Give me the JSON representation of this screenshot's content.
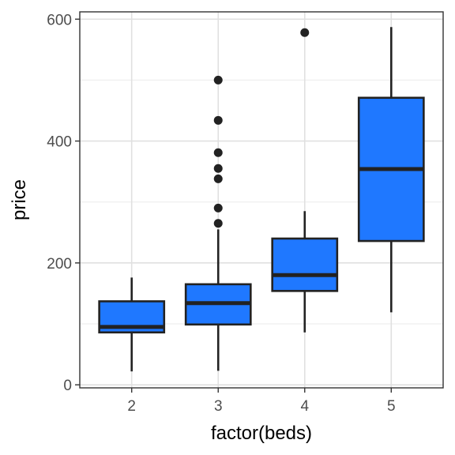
{
  "chart_data": {
    "type": "boxplot",
    "xlabel": "factor(beds)",
    "ylabel": "price",
    "categories": [
      "2",
      "3",
      "4",
      "5"
    ],
    "ylim": [
      -5,
      612
    ],
    "yticks": [
      0,
      200,
      400,
      600
    ],
    "y_minor_ticks": [
      100,
      300,
      500
    ],
    "grid": true,
    "fill_color": "#1f78ff",
    "line_color": "#222222",
    "boxes": [
      {
        "category": "2",
        "whisker_low": 22,
        "q1": 86,
        "median": 95,
        "q3": 137,
        "whisker_high": 176,
        "outliers": []
      },
      {
        "category": "3",
        "whisker_low": 23,
        "q1": 99,
        "median": 134,
        "q3": 165,
        "whisker_high": 255,
        "outliers": [
          265,
          290,
          338,
          355,
          381,
          434,
          500
        ]
      },
      {
        "category": "4",
        "whisker_low": 86,
        "q1": 154,
        "median": 180,
        "q3": 240,
        "whisker_high": 285,
        "outliers": [
          578
        ]
      },
      {
        "category": "5",
        "whisker_low": 119,
        "q1": 236,
        "median": 354,
        "q3": 471,
        "whisker_high": 587,
        "outliers": []
      }
    ]
  }
}
